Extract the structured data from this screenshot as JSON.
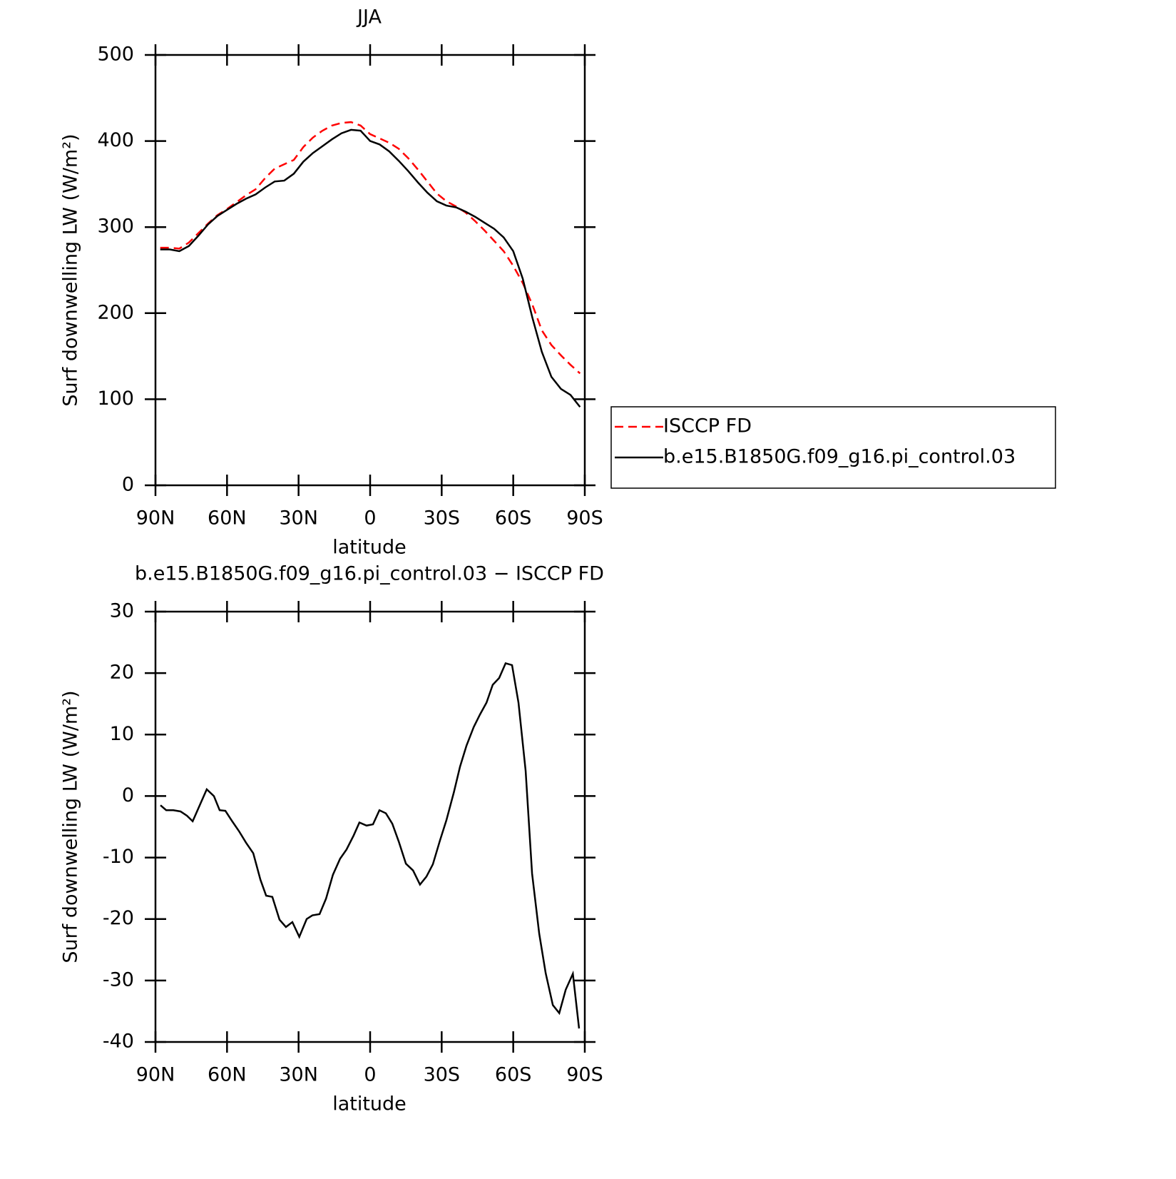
{
  "chart_data": [
    {
      "type": "line",
      "title": "JJA",
      "xlabel": "latitude",
      "ylabel": "Surf downwelling LW (W/m²)",
      "x": [
        88,
        84,
        80,
        76,
        72,
        68,
        64,
        60,
        56,
        52,
        48,
        44,
        40,
        36,
        32,
        28,
        24,
        20,
        16,
        12,
        8,
        4,
        0,
        -4,
        -8,
        -12,
        -16,
        -20,
        -24,
        -28,
        -32,
        -36,
        -40,
        -44,
        -48,
        -52,
        -56,
        -60,
        -64,
        -68,
        -72,
        -76,
        -80,
        -84,
        -88
      ],
      "series": [
        {
          "name": "ISCCP FD",
          "color": "#ff0000",
          "linestyle": "dashed",
          "values": [
            276,
            276,
            275,
            282,
            293,
            304,
            314,
            321,
            329,
            337,
            344,
            357,
            368,
            373,
            378,
            393,
            404,
            412,
            418,
            421,
            422,
            418,
            408,
            403,
            398,
            391,
            380,
            367,
            353,
            339,
            330,
            324,
            317,
            307,
            296,
            284,
            272,
            255,
            235,
            210,
            180,
            163,
            151,
            140,
            130
          ]
        },
        {
          "name": "b.e15.B1850G.f09_g16.pi_control.03",
          "color": "#000000",
          "linestyle": "solid",
          "values": [
            274,
            274,
            272,
            278,
            290,
            303,
            313,
            320,
            327,
            333,
            338,
            346,
            353,
            354,
            362,
            376,
            386,
            394,
            402,
            409,
            413,
            412,
            400,
            396,
            388,
            377,
            365,
            352,
            340,
            330,
            325,
            323,
            318,
            312,
            305,
            298,
            288,
            272,
            240,
            195,
            155,
            126,
            112,
            105,
            91
          ]
        }
      ],
      "legend": "right",
      "xlim": [
        90,
        -90
      ],
      "xticks": [
        {
          "value": 90,
          "label": "90N"
        },
        {
          "value": 60,
          "label": "60N"
        },
        {
          "value": 30,
          "label": "30N"
        },
        0,
        {
          "value": -30,
          "label": "30S"
        },
        {
          "value": -60,
          "label": "60S"
        },
        {
          "value": -90,
          "label": "90S"
        }
      ],
      "ylim": [
        0,
        500
      ],
      "yticks": [
        0,
        100,
        200,
        300,
        400,
        500
      ]
    },
    {
      "type": "line",
      "title": "b.e15.B1850G.f09_g16.pi_control.03 − ISCCP FD",
      "xlabel": "latitude",
      "ylabel": "Surf downwelling LW (W/m²)",
      "x": [
        87.9,
        85.5,
        82.5,
        79.5,
        76.8,
        74.4,
        68.5,
        65.5,
        63.1,
        60.7,
        58.0,
        55.0,
        52.0,
        49.0,
        46.0,
        43.6,
        41.0,
        38.0,
        35.3,
        32.6,
        29.7,
        26.6,
        24.2,
        21.2,
        18.5,
        15.6,
        12.6,
        9.9,
        6.9,
        4.5,
        1.5,
        -1.2,
        -3.9,
        -6.6,
        -9.3,
        -12.0,
        -15.0,
        -18.0,
        -20.9,
        -23.6,
        -26.3,
        -29.3,
        -32.0,
        -35.1,
        -37.7,
        -40.4,
        -43.4,
        -46.1,
        -48.8,
        -51.4,
        -54.1,
        -56.8,
        -59.5,
        -62.2,
        -65.2,
        -67.9,
        -70.9,
        -73.6,
        -76.6,
        -79.3,
        -82.0,
        -85.0,
        -87.6
      ],
      "values": [
        -1.5,
        -2.3,
        -2.3,
        -2.5,
        -3.2,
        -4.1,
        1.1,
        0,
        -2.3,
        -2.4,
        -4,
        -5.7,
        -7.6,
        -9.3,
        -13.6,
        -16.2,
        -16.4,
        -20.1,
        -21.3,
        -20.5,
        -22.9,
        -20,
        -19.4,
        -19.2,
        -16.7,
        -12.8,
        -10.2,
        -8.7,
        -6.4,
        -4.3,
        -4.8,
        -4.6,
        -2.3,
        -2.8,
        -4.5,
        -7.4,
        -11,
        -12.1,
        -14.4,
        -13.1,
        -11.1,
        -7.2,
        -3.9,
        0.6,
        4.8,
        8.2,
        11.2,
        13.3,
        15.2,
        18.1,
        19.2,
        21.6,
        21.3,
        15.2,
        4.1,
        -12.6,
        -22.4,
        -28.8,
        -34,
        -35.3,
        -31.5,
        -28.9,
        -37.8
      ],
      "color": "#000000",
      "xlim": [
        90,
        -90
      ],
      "xticks": [
        {
          "value": 90,
          "label": "90N"
        },
        {
          "value": 60,
          "label": "60N"
        },
        {
          "value": 30,
          "label": "30N"
        },
        0,
        {
          "value": -30,
          "label": "30S"
        },
        {
          "value": -60,
          "label": "60S"
        },
        {
          "value": -90,
          "label": "90S"
        }
      ],
      "ylim": [
        -40,
        30
      ],
      "yticks": [
        -40,
        -30,
        -20,
        -10,
        0,
        10,
        20,
        30
      ]
    }
  ]
}
